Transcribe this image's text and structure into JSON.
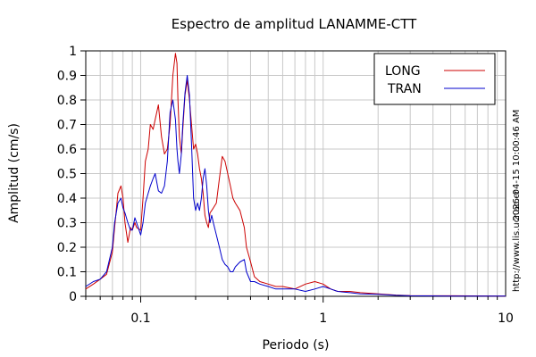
{
  "chart_data": {
    "type": "line",
    "title": "Espectro de amplitud LANAMME-CTT",
    "xlabel": "Periodo (s)",
    "ylabel": "Amplitud (cm/s)",
    "x_scale": "log",
    "xlim": [
      0.05,
      10
    ],
    "ylim": [
      0,
      1
    ],
    "x_ticks": [
      {
        "value": 0.1,
        "label": "0.1"
      },
      {
        "value": 1,
        "label": "1"
      },
      {
        "value": 10,
        "label": "10"
      }
    ],
    "y_ticks": [
      {
        "value": 0,
        "label": "0"
      },
      {
        "value": 0.1,
        "label": "0.1"
      },
      {
        "value": 0.2,
        "label": "0.2"
      },
      {
        "value": 0.3,
        "label": "0.3"
      },
      {
        "value": 0.4,
        "label": "0.4"
      },
      {
        "value": 0.5,
        "label": "0.5"
      },
      {
        "value": 0.6,
        "label": "0.6"
      },
      {
        "value": 0.7,
        "label": "0.7"
      },
      {
        "value": 0.8,
        "label": "0.8"
      },
      {
        "value": 0.9,
        "label": "0.9"
      },
      {
        "value": 1,
        "label": "1"
      }
    ],
    "grid": true,
    "legend": "top-right",
    "side_texts": [
      "2026-04-15 10:00:46 AM",
      "http://www.lis.ucr.ac.cr"
    ],
    "series": [
      {
        "name": "LONG",
        "color": "#cc0000",
        "x": [
          0.05,
          0.055,
          0.06,
          0.065,
          0.07,
          0.072,
          0.075,
          0.078,
          0.08,
          0.082,
          0.085,
          0.088,
          0.09,
          0.093,
          0.095,
          0.1,
          0.103,
          0.106,
          0.11,
          0.113,
          0.117,
          0.12,
          0.125,
          0.13,
          0.135,
          0.14,
          0.145,
          0.15,
          0.155,
          0.158,
          0.16,
          0.163,
          0.167,
          0.17,
          0.175,
          0.18,
          0.185,
          0.19,
          0.195,
          0.2,
          0.205,
          0.21,
          0.215,
          0.22,
          0.225,
          0.23,
          0.235,
          0.24,
          0.245,
          0.25,
          0.26,
          0.27,
          0.28,
          0.29,
          0.3,
          0.31,
          0.32,
          0.33,
          0.35,
          0.37,
          0.38,
          0.4,
          0.42,
          0.45,
          0.5,
          0.55,
          0.6,
          0.7,
          0.8,
          0.9,
          1.0,
          1.1,
          1.2,
          1.4,
          1.6,
          2.0,
          2.5,
          3.0,
          5.0,
          10.0
        ],
        "y": [
          0.03,
          0.05,
          0.07,
          0.09,
          0.18,
          0.28,
          0.42,
          0.45,
          0.4,
          0.3,
          0.22,
          0.28,
          0.27,
          0.3,
          0.28,
          0.27,
          0.4,
          0.55,
          0.6,
          0.7,
          0.68,
          0.72,
          0.78,
          0.65,
          0.58,
          0.6,
          0.7,
          0.9,
          0.99,
          0.95,
          0.8,
          0.65,
          0.58,
          0.68,
          0.82,
          0.88,
          0.8,
          0.7,
          0.6,
          0.62,
          0.58,
          0.52,
          0.48,
          0.42,
          0.33,
          0.3,
          0.28,
          0.34,
          0.35,
          0.36,
          0.38,
          0.48,
          0.57,
          0.55,
          0.5,
          0.45,
          0.4,
          0.38,
          0.35,
          0.28,
          0.2,
          0.14,
          0.08,
          0.06,
          0.05,
          0.04,
          0.04,
          0.03,
          0.05,
          0.06,
          0.05,
          0.03,
          0.02,
          0.02,
          0.015,
          0.01,
          0.005,
          0.003,
          0.002,
          0.001
        ]
      },
      {
        "name": "TRAN",
        "color": "#0000cc",
        "x": [
          0.05,
          0.055,
          0.06,
          0.065,
          0.07,
          0.072,
          0.075,
          0.078,
          0.08,
          0.082,
          0.085,
          0.088,
          0.09,
          0.093,
          0.095,
          0.1,
          0.103,
          0.106,
          0.11,
          0.113,
          0.117,
          0.12,
          0.125,
          0.13,
          0.135,
          0.14,
          0.145,
          0.15,
          0.155,
          0.158,
          0.16,
          0.163,
          0.167,
          0.17,
          0.175,
          0.18,
          0.185,
          0.19,
          0.195,
          0.2,
          0.205,
          0.21,
          0.215,
          0.22,
          0.225,
          0.23,
          0.235,
          0.24,
          0.245,
          0.25,
          0.26,
          0.27,
          0.28,
          0.29,
          0.3,
          0.31,
          0.32,
          0.33,
          0.35,
          0.37,
          0.38,
          0.4,
          0.42,
          0.45,
          0.5,
          0.55,
          0.6,
          0.7,
          0.8,
          0.9,
          1.0,
          1.1,
          1.2,
          1.4,
          1.6,
          2.0,
          2.5,
          3.0,
          5.0,
          10.0
        ],
        "y": [
          0.04,
          0.06,
          0.07,
          0.1,
          0.2,
          0.3,
          0.38,
          0.4,
          0.36,
          0.34,
          0.3,
          0.27,
          0.27,
          0.32,
          0.3,
          0.25,
          0.3,
          0.38,
          0.42,
          0.45,
          0.48,
          0.5,
          0.43,
          0.42,
          0.45,
          0.55,
          0.75,
          0.8,
          0.72,
          0.6,
          0.55,
          0.5,
          0.58,
          0.7,
          0.83,
          0.9,
          0.82,
          0.62,
          0.4,
          0.35,
          0.38,
          0.35,
          0.4,
          0.48,
          0.52,
          0.45,
          0.35,
          0.3,
          0.33,
          0.3,
          0.25,
          0.2,
          0.15,
          0.13,
          0.12,
          0.1,
          0.1,
          0.12,
          0.14,
          0.15,
          0.1,
          0.06,
          0.06,
          0.05,
          0.04,
          0.03,
          0.03,
          0.03,
          0.02,
          0.03,
          0.04,
          0.03,
          0.02,
          0.015,
          0.01,
          0.008,
          0.004,
          0.002,
          0.001,
          0.001
        ]
      }
    ]
  }
}
